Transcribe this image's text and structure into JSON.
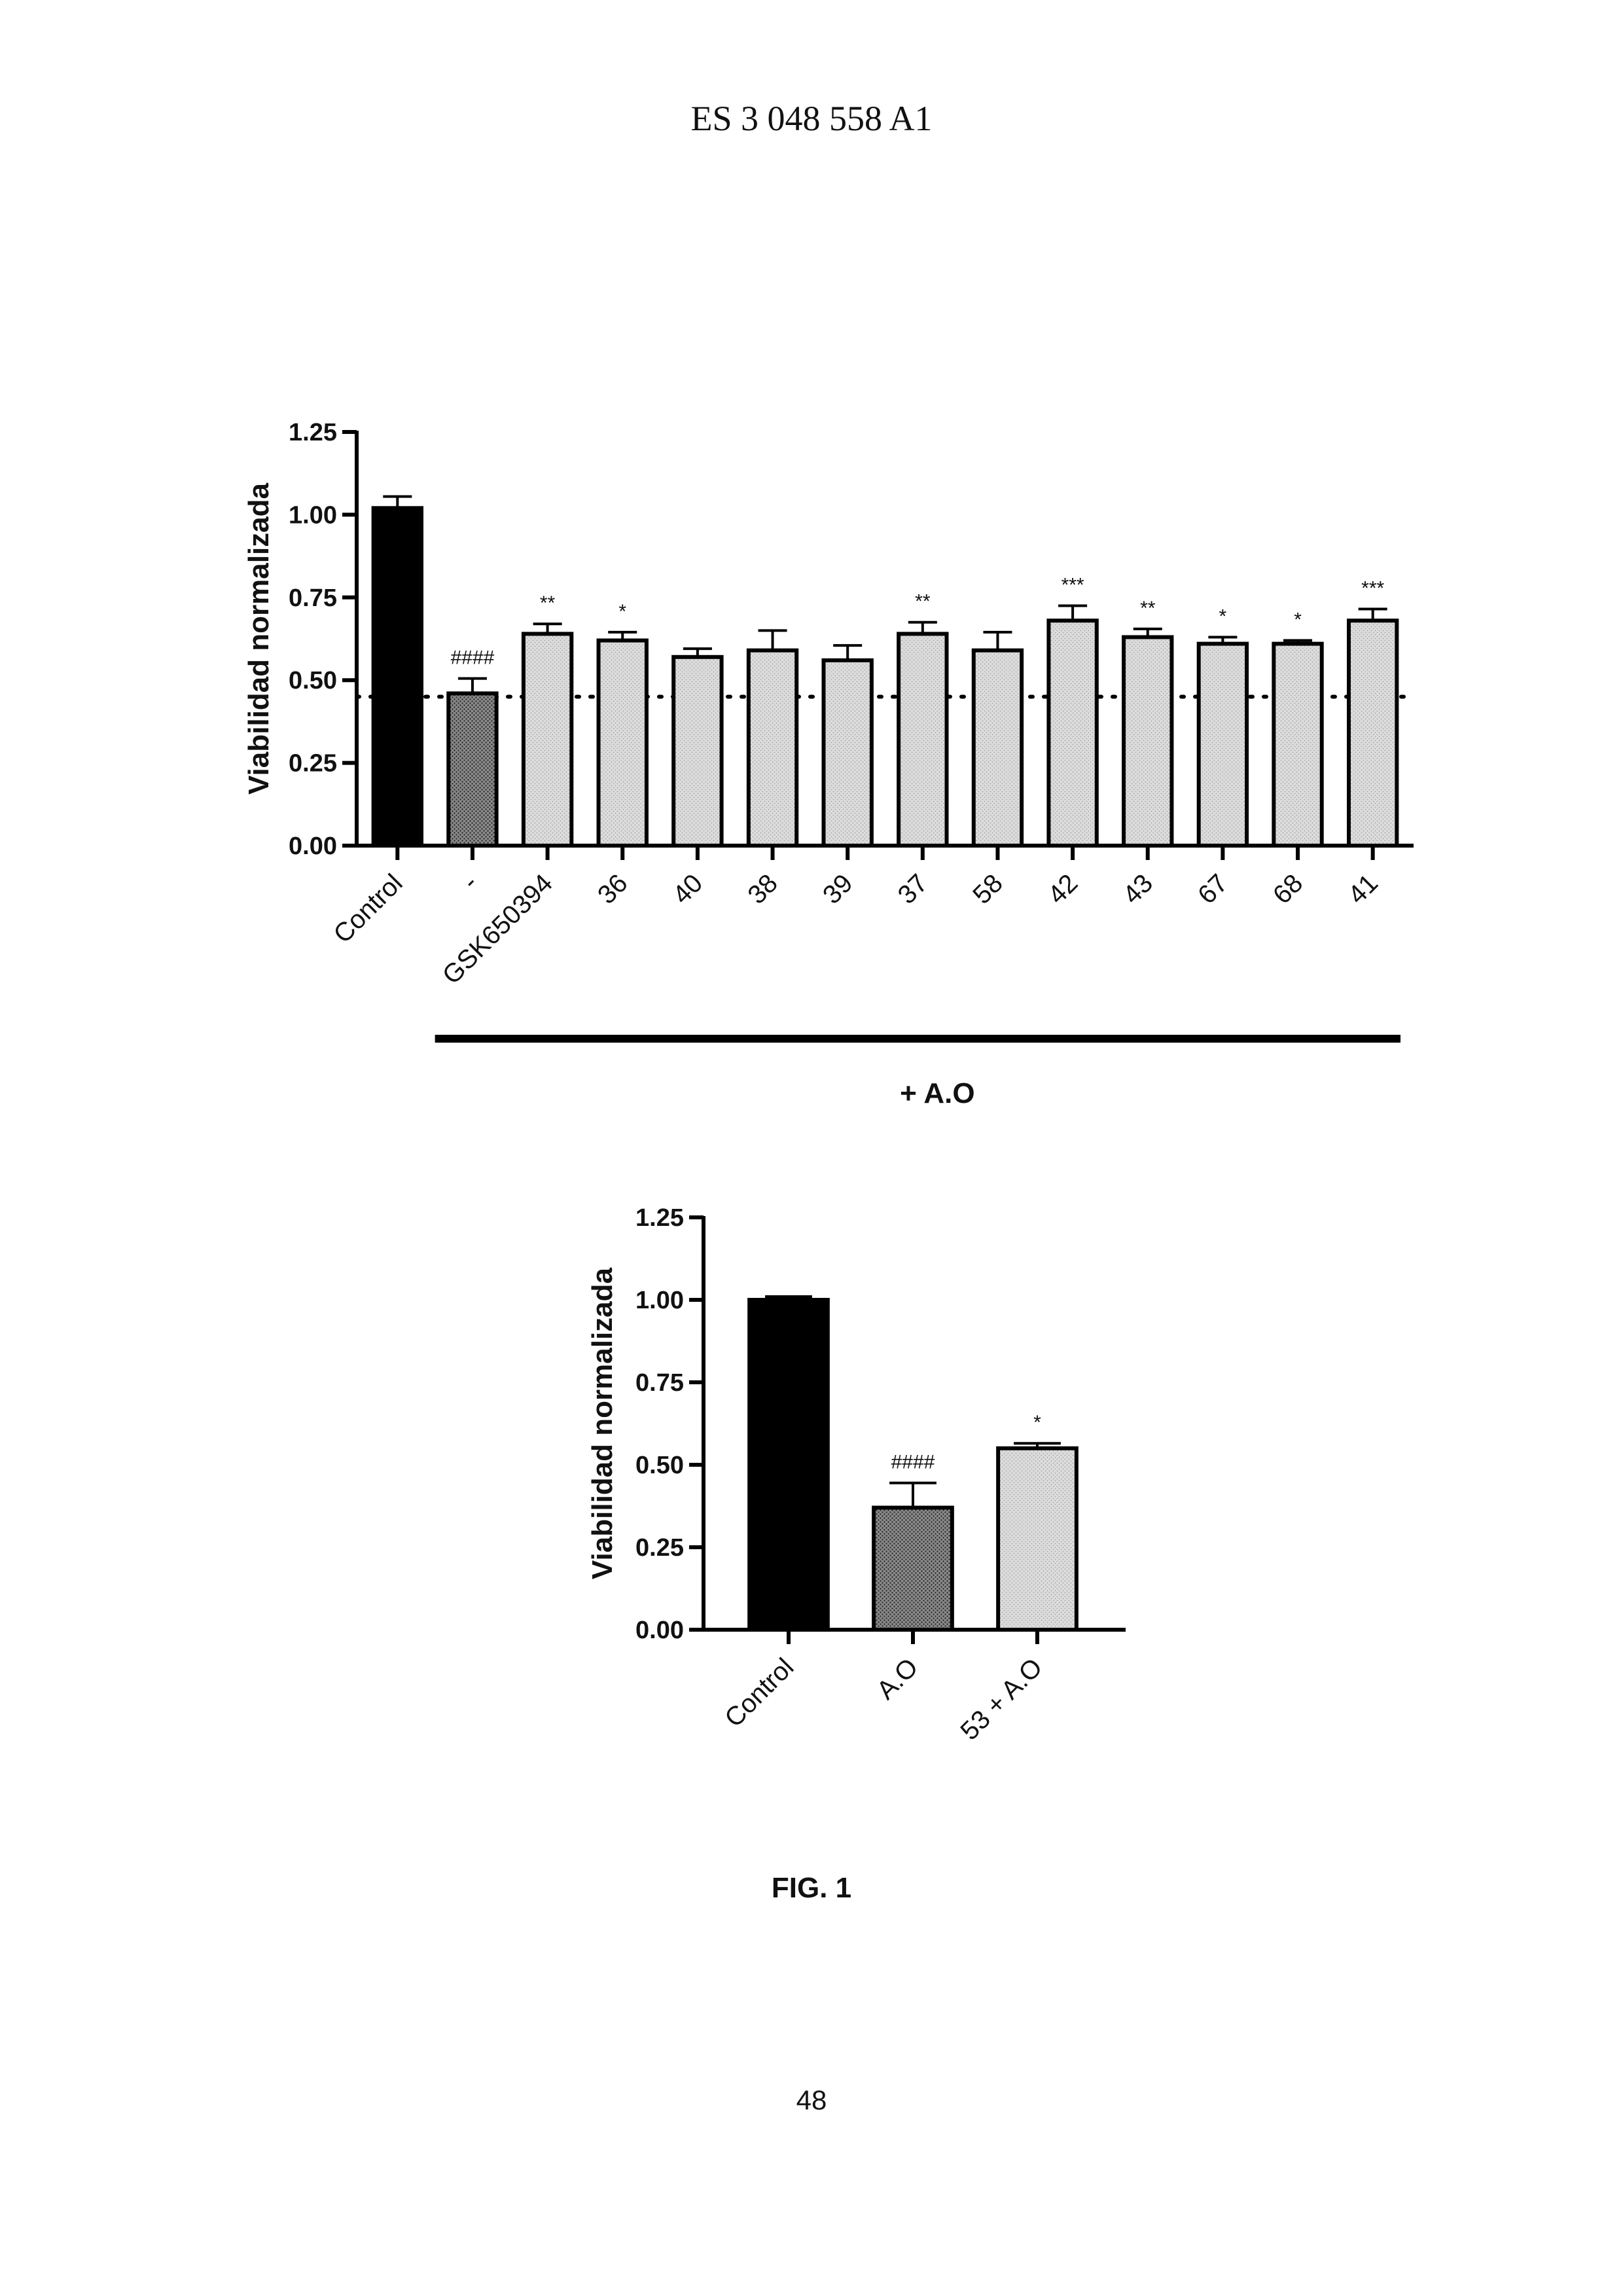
{
  "page": {
    "header": "ES 3 048 558 A1",
    "figure_label": "FIG. 1",
    "page_number": "48"
  },
  "chart_data": [
    {
      "type": "bar",
      "ylabel": "Viabilidad normalizada",
      "ylim": [
        0,
        1.25
      ],
      "yticks": [
        "0.00",
        "0.25",
        "0.50",
        "0.75",
        "1.00",
        "1.25"
      ],
      "categories": [
        "Control",
        "-",
        "GSK650394",
        "36",
        "40",
        "38",
        "39",
        "37",
        "58",
        "42",
        "43",
        "67",
        "68",
        "41"
      ],
      "values": [
        1.02,
        0.46,
        0.64,
        0.62,
        0.57,
        0.59,
        0.56,
        0.64,
        0.59,
        0.68,
        0.63,
        0.61,
        0.61,
        0.68
      ],
      "errors": [
        0.035,
        0.045,
        0.03,
        0.025,
        0.025,
        0.06,
        0.045,
        0.035,
        0.055,
        0.045,
        0.025,
        0.02,
        0.01,
        0.035
      ],
      "annotations": [
        "",
        "####",
        "**",
        "*",
        "",
        "",
        "",
        "**",
        "",
        "***",
        "**",
        "*",
        "*",
        "***"
      ],
      "fills": [
        "black",
        "dense-dots",
        "light-dots",
        "light-dots",
        "light-dots",
        "light-dots",
        "light-dots",
        "light-dots",
        "light-dots",
        "light-dots",
        "light-dots",
        "light-dots",
        "light-dots",
        "light-dots"
      ],
      "reference_line": 0.45,
      "group_label": "+ A.O",
      "group_start": 1
    },
    {
      "type": "bar",
      "ylabel": "Viabilidad normalizada",
      "ylim": [
        0,
        1.25
      ],
      "yticks": [
        "0.00",
        "0.25",
        "0.50",
        "0.75",
        "1.00",
        "1.25"
      ],
      "categories": [
        "Control",
        "A.O",
        "53 + A.O"
      ],
      "values": [
        1.0,
        0.37,
        0.55
      ],
      "errors": [
        0.01,
        0.075,
        0.015
      ],
      "annotations": [
        "",
        "####",
        "*"
      ],
      "fills": [
        "black",
        "dense-dots",
        "light-dots"
      ]
    }
  ]
}
